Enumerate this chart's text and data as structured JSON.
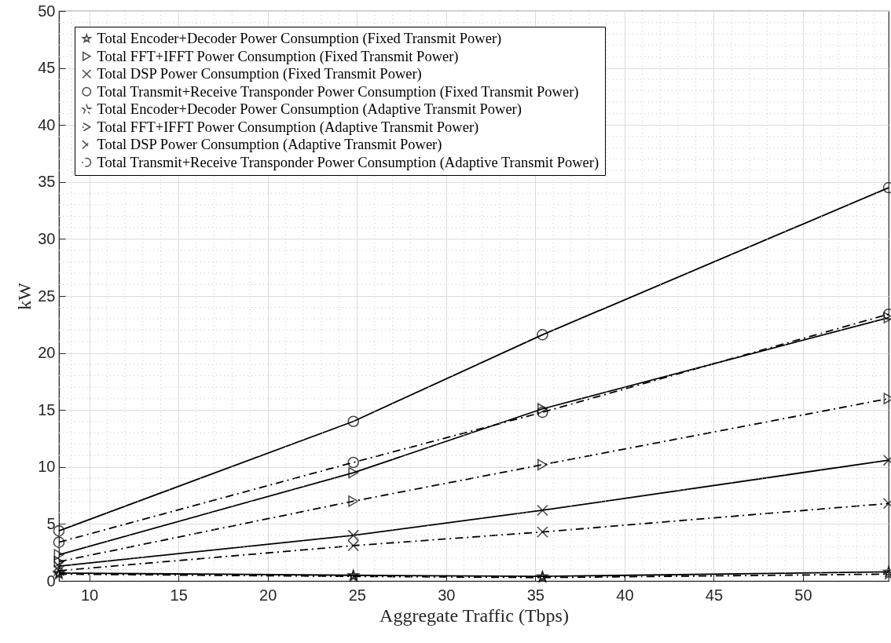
{
  "chart_data": {
    "type": "line",
    "xlabel": "Aggregate Traffic (Tbps)",
    "ylabel": "kW",
    "x": [
      8.3,
      24.8,
      35.4,
      54.8
    ],
    "xlim": [
      8.3,
      54.8
    ],
    "xticks": [
      10,
      15,
      20,
      25,
      30,
      35,
      40,
      45,
      50
    ],
    "ylim": [
      0,
      50
    ],
    "yticks": [
      0,
      5,
      10,
      15,
      20,
      25,
      30,
      35,
      40,
      45,
      50
    ],
    "grid": true,
    "legend": "top left",
    "series": [
      {
        "name": "Total Encoder+Decoder Power Consumption (Fixed Transmit Power)",
        "color": "#000000",
        "marker": "star",
        "line_style": "solid",
        "values": [
          0.7,
          0.5,
          0.4,
          0.8
        ]
      },
      {
        "name": "Total FFT+IFFT Power Consumption (Fixed Transmit Power)",
        "color": "#000000",
        "marker": "triangle",
        "line_style": "solid",
        "values": [
          2.3,
          9.5,
          15.1,
          23.1
        ]
      },
      {
        "name": "Total DSP Power Consumption (Fixed Transmit Power)",
        "color": "#000000",
        "marker": "cross",
        "line_style": "solid",
        "values": [
          1.3,
          4.0,
          6.2,
          10.6
        ]
      },
      {
        "name": "Total Transmit+Receive Transponder Power Consumption (Fixed Transmit Power)",
        "color": "#000000",
        "marker": "circle",
        "line_style": "solid",
        "values": [
          4.4,
          14.0,
          21.6,
          34.5
        ]
      },
      {
        "name": "Total Encoder+Decoder Power Consumption (Adaptive Transmit Power)",
        "color": "#000000",
        "marker": "star",
        "line_style": "dashdot",
        "values": [
          0.6,
          0.4,
          0.3,
          0.6
        ]
      },
      {
        "name": "Total FFT+IFFT Power Consumption (Adaptive Transmit Power)",
        "color": "#000000",
        "marker": "triangle",
        "line_style": "dashdot",
        "values": [
          1.7,
          7.0,
          10.2,
          16.0
        ]
      },
      {
        "name": "Total DSP Power Consumption (Adaptive Transmit Power)",
        "color": "#000000",
        "marker": "cross",
        "line_style": "dashdot",
        "values": [
          0.9,
          3.1,
          4.3,
          6.8
        ]
      },
      {
        "name": "Total Transmit+Receive Transponder Power Consumption (Adaptive Transmit Power)",
        "color": "#000000",
        "marker": "circle",
        "line_style": "dashdot",
        "values": [
          3.4,
          10.4,
          14.8,
          23.4
        ]
      }
    ]
  }
}
